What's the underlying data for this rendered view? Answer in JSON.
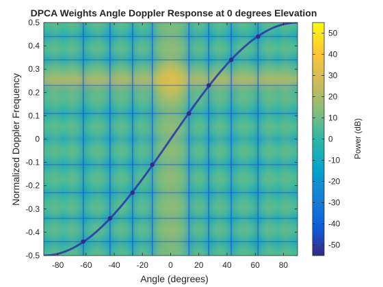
{
  "chart_data": {
    "type": "heatmap",
    "title": "DPCA Weights Angle Doppler Response at 0 degrees Elevation",
    "xlabel": "Angle (degrees)",
    "ylabel": "Normalized Doppler Frequency",
    "xlim": [
      -90,
      90
    ],
    "ylim": [
      -0.5,
      0.5
    ],
    "xticks": [
      -80,
      -60,
      -40,
      -20,
      0,
      20,
      40,
      60,
      80
    ],
    "yticks": [
      -0.5,
      -0.4,
      -0.3,
      -0.2,
      -0.1,
      0,
      0.1,
      0.2,
      0.3,
      0.4,
      0.5
    ],
    "colorbar": {
      "label": "Power (dB)",
      "range": [
        -55,
        55
      ],
      "ticks": [
        -50,
        -40,
        -30,
        -20,
        -10,
        0,
        10,
        20,
        30,
        40,
        50
      ],
      "colormap": [
        "#352a87",
        "#0f5cdd",
        "#1481d6",
        "#06a4ca",
        "#2eb7a4",
        "#87bf77",
        "#d1bb59",
        "#fec832",
        "#f9fb0e"
      ]
    },
    "peak": {
      "angle": 0,
      "doppler": 0.25,
      "power_db": 50
    },
    "clutter_ridge": {
      "angles": [
        -90,
        -62,
        -43,
        -27,
        -13,
        0,
        13,
        27,
        43,
        62,
        90
      ],
      "doppler": [
        -0.5,
        -0.44,
        -0.34,
        -0.23,
        -0.11,
        0,
        0.11,
        0.23,
        0.34,
        0.44,
        0.5
      ]
    },
    "null_angles": [
      -62,
      -43,
      -27,
      -13,
      13,
      27,
      43,
      62
    ],
    "null_dopplers": [
      -0.44,
      -0.34,
      -0.23,
      -0.11,
      0.11,
      0.23,
      0.34,
      0.44
    ],
    "grid": false
  }
}
